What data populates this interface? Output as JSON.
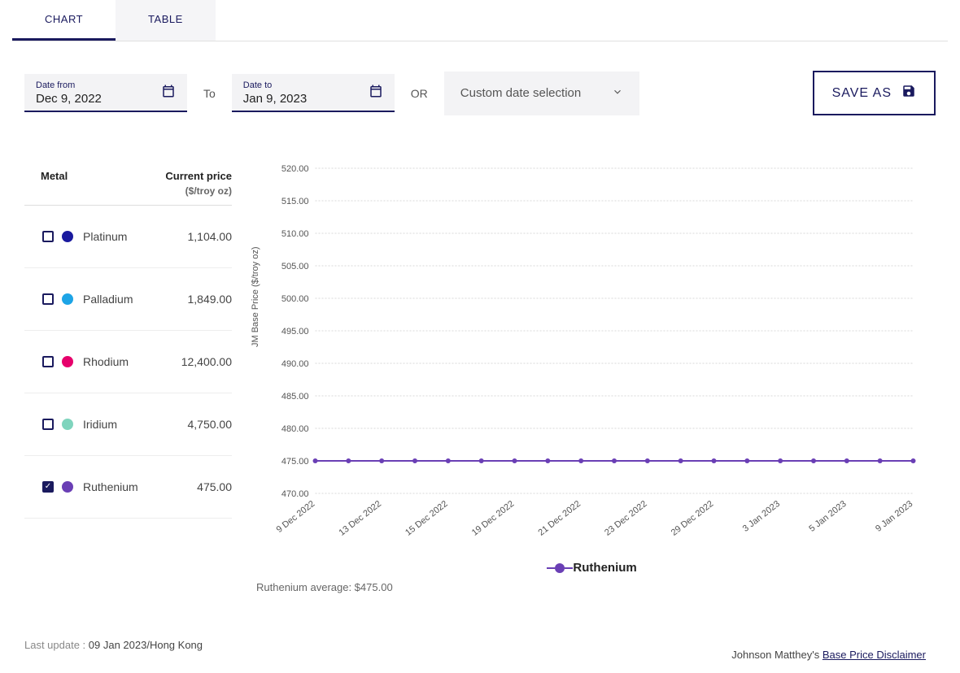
{
  "tabs": {
    "chart": "CHART",
    "table": "TABLE",
    "active": "chart"
  },
  "controls": {
    "date_from_label": "Date from",
    "date_from_value": "Dec 9, 2022",
    "to_label": "To",
    "date_to_label": "Date to",
    "date_to_value": "Jan 9, 2023",
    "or_label": "OR",
    "custom_select_label": "Custom date selection",
    "save_as_label": "SAVE AS"
  },
  "metals_table": {
    "header_metal": "Metal",
    "header_price": "Current price",
    "header_price_sub": "($/troy oz)",
    "rows": [
      {
        "name": "Platinum",
        "price": "1,104.00",
        "color": "#1a1a9e",
        "checked": false
      },
      {
        "name": "Palladium",
        "price": "1,849.00",
        "color": "#1da4e6",
        "checked": false
      },
      {
        "name": "Rhodium",
        "price": "12,400.00",
        "color": "#e6006b",
        "checked": false
      },
      {
        "name": "Iridium",
        "price": "4,750.00",
        "color": "#7fd4bd",
        "checked": false
      },
      {
        "name": "Ruthenium",
        "price": "475.00",
        "color": "#6a3fb5",
        "checked": true
      }
    ]
  },
  "chart": {
    "type": "line",
    "y_axis_label": "JM Base Price ($/troy oz)",
    "ylim": [
      470,
      520
    ],
    "ytick_step": 5,
    "yticks": [
      "520.00",
      "515.00",
      "510.00",
      "505.00",
      "500.00",
      "495.00",
      "490.00",
      "485.00",
      "480.00",
      "475.00",
      "470.00"
    ],
    "x_labels": [
      "9 Dec 2022",
      "13 Dec 2022",
      "15 Dec 2022",
      "19 Dec 2022",
      "21 Dec 2022",
      "23 Dec 2022",
      "29 Dec 2022",
      "3 Jan 2023",
      "5 Jan 2023",
      "9 Jan 2023"
    ],
    "series": [
      {
        "name": "Ruthenium",
        "color": "#6a3fb5",
        "values": [
          475,
          475,
          475,
          475,
          475,
          475,
          475,
          475,
          475,
          475,
          475,
          475,
          475,
          475,
          475,
          475,
          475,
          475,
          475
        ],
        "marker": "circle",
        "line_width": 2,
        "marker_size": 3
      }
    ],
    "grid_color": "#d8d8d8",
    "background_color": "#ffffff",
    "tick_fontsize": 11,
    "tick_color": "#555555",
    "n_points": 19,
    "legend_label": "Ruthenium",
    "average_text": "Ruthenium average: $475.00"
  },
  "footer": {
    "last_update_label": "Last update : ",
    "last_update_value": "09 Jan 2023/Hong Kong",
    "disclaimer_prefix": "Johnson Matthey's ",
    "disclaimer_link": "Base Price Disclaimer"
  },
  "colors": {
    "primary": "#1a1a5e"
  }
}
